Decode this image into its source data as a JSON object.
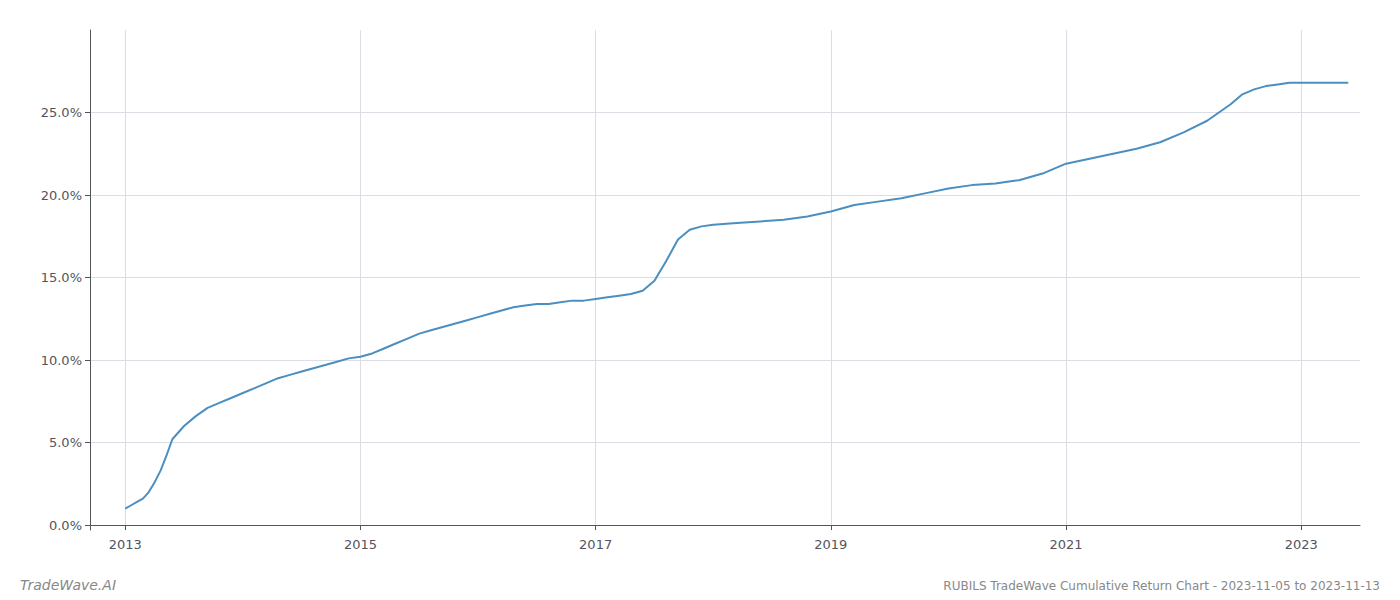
{
  "chart_data": {
    "type": "line",
    "color": "#4a8fc0",
    "grid": true,
    "annotations": [
      "TradeWave.AI",
      "RUBILS TradeWave Cumulative Return Chart - 2023-11-05 to 2023-11-13"
    ],
    "xlim": [
      2012.7,
      2023.5
    ],
    "ylim": [
      -0.003,
      0.3
    ],
    "xticks": [
      2013,
      2015,
      2017,
      2019,
      2021,
      2023
    ],
    "yticks": [
      {
        "value": 0.0,
        "label": "0.0%"
      },
      {
        "value": 0.05,
        "label": "5.0%"
      },
      {
        "value": 0.1,
        "label": "10.0%"
      },
      {
        "value": 0.15,
        "label": "15.0%"
      },
      {
        "value": 0.2,
        "label": "20.0%"
      },
      {
        "value": 0.25,
        "label": "25.0%"
      }
    ],
    "x": [
      2013.0,
      2013.05,
      2013.1,
      2013.15,
      2013.2,
      2013.25,
      2013.3,
      2013.35,
      2013.4,
      2013.5,
      2013.6,
      2013.7,
      2013.8,
      2013.9,
      2014.0,
      2014.1,
      2014.2,
      2014.3,
      2014.4,
      2014.5,
      2014.6,
      2014.7,
      2014.8,
      2014.9,
      2015.0,
      2015.1,
      2015.2,
      2015.3,
      2015.4,
      2015.5,
      2015.6,
      2015.7,
      2015.8,
      2015.9,
      2016.0,
      2016.1,
      2016.2,
      2016.3,
      2016.4,
      2016.5,
      2016.6,
      2016.7,
      2016.8,
      2016.9,
      2017.0,
      2017.1,
      2017.2,
      2017.3,
      2017.4,
      2017.5,
      2017.6,
      2017.7,
      2017.8,
      2017.9,
      2018.0,
      2018.2,
      2018.4,
      2018.6,
      2018.8,
      2019.0,
      2019.2,
      2019.4,
      2019.6,
      2019.8,
      2020.0,
      2020.2,
      2020.4,
      2020.5,
      2020.6,
      2020.8,
      2021.0,
      2021.2,
      2021.4,
      2021.6,
      2021.8,
      2022.0,
      2022.2,
      2022.4,
      2022.5,
      2022.6,
      2022.7,
      2022.8,
      2022.9,
      2023.0,
      2023.2,
      2023.4
    ],
    "values": [
      0.01,
      0.012,
      0.014,
      0.016,
      0.02,
      0.026,
      0.033,
      0.042,
      0.052,
      0.06,
      0.066,
      0.071,
      0.074,
      0.077,
      0.08,
      0.083,
      0.086,
      0.089,
      0.091,
      0.093,
      0.095,
      0.097,
      0.099,
      0.101,
      0.102,
      0.104,
      0.107,
      0.11,
      0.113,
      0.116,
      0.118,
      0.12,
      0.122,
      0.124,
      0.126,
      0.128,
      0.13,
      0.132,
      0.133,
      0.134,
      0.134,
      0.135,
      0.136,
      0.136,
      0.137,
      0.138,
      0.139,
      0.14,
      0.142,
      0.148,
      0.16,
      0.173,
      0.179,
      0.181,
      0.182,
      0.183,
      0.184,
      0.185,
      0.187,
      0.19,
      0.194,
      0.196,
      0.198,
      0.201,
      0.204,
      0.206,
      0.207,
      0.208,
      0.209,
      0.213,
      0.219,
      0.222,
      0.225,
      0.228,
      0.232,
      0.238,
      0.245,
      0.255,
      0.261,
      0.264,
      0.266,
      0.267,
      0.268,
      0.268,
      0.268,
      0.268
    ]
  }
}
